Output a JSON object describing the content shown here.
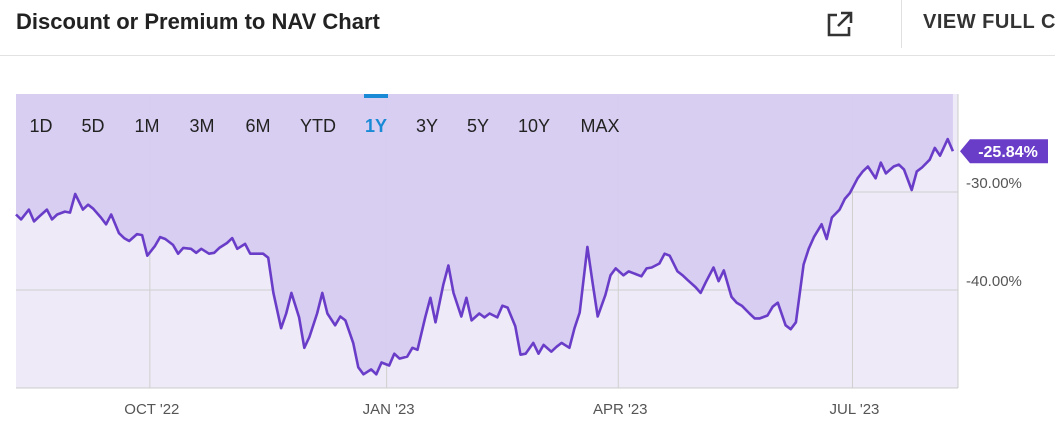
{
  "header": {
    "title": "Discount or Premium to NAV Chart",
    "view_full_label": "VIEW FULL C",
    "external_icon": "external-link-icon"
  },
  "colors": {
    "line": "#6a3dc9",
    "fill": "#d6ccf0",
    "active_range": "#1a8ad6",
    "badge": "#6a3dc9"
  },
  "chart_data": {
    "type": "area",
    "title": "",
    "xlabel": "",
    "ylabel": "",
    "ylim": [
      -50,
      -20
    ],
    "y_ticks": [
      -30,
      -40
    ],
    "y_tick_labels": [
      "-30.00%",
      "-40.00%"
    ],
    "x_ticks": [
      "2022-10-01",
      "2023-01-01",
      "2023-04-01",
      "2023-07-01"
    ],
    "x_tick_labels": [
      "OCT '22",
      "JAN '23",
      "APR '23",
      "JUL '23"
    ],
    "grid": true,
    "last_value_label": "-25.84%",
    "range_buttons": [
      "1D",
      "5D",
      "1M",
      "3M",
      "6M",
      "YTD",
      "1Y",
      "3Y",
      "5Y",
      "10Y",
      "MAX"
    ],
    "active_range": "1Y",
    "series": [
      {
        "points": [
          [
            "2022-08-10",
            -32.3
          ],
          [
            "2022-08-12",
            -32.8
          ],
          [
            "2022-08-15",
            -31.8
          ],
          [
            "2022-08-17",
            -33.0
          ],
          [
            "2022-08-19",
            -32.5
          ],
          [
            "2022-08-22",
            -31.8
          ],
          [
            "2022-08-24",
            -32.8
          ],
          [
            "2022-08-26",
            -32.3
          ],
          [
            "2022-08-29",
            -32.0
          ],
          [
            "2022-08-31",
            -32.1
          ],
          [
            "2022-09-02",
            -30.2
          ],
          [
            "2022-09-05",
            -31.8
          ],
          [
            "2022-09-07",
            -31.3
          ],
          [
            "2022-09-09",
            -31.7
          ],
          [
            "2022-09-12",
            -32.6
          ],
          [
            "2022-09-14",
            -33.3
          ],
          [
            "2022-09-16",
            -32.3
          ],
          [
            "2022-09-19",
            -34.2
          ],
          [
            "2022-09-21",
            -34.7
          ],
          [
            "2022-09-23",
            -35.0
          ],
          [
            "2022-09-26",
            -34.3
          ],
          [
            "2022-09-28",
            -34.4
          ],
          [
            "2022-09-30",
            -36.5
          ],
          [
            "2022-10-03",
            -35.5
          ],
          [
            "2022-10-05",
            -34.6
          ],
          [
            "2022-10-07",
            -34.8
          ],
          [
            "2022-10-10",
            -35.4
          ],
          [
            "2022-10-12",
            -36.3
          ],
          [
            "2022-10-14",
            -35.7
          ],
          [
            "2022-10-17",
            -35.8
          ],
          [
            "2022-10-19",
            -36.2
          ],
          [
            "2022-10-21",
            -35.8
          ],
          [
            "2022-10-24",
            -36.3
          ],
          [
            "2022-10-26",
            -36.2
          ],
          [
            "2022-10-28",
            -35.7
          ],
          [
            "2022-10-31",
            -35.2
          ],
          [
            "2022-11-02",
            -34.7
          ],
          [
            "2022-11-04",
            -35.8
          ],
          [
            "2022-11-07",
            -35.3
          ],
          [
            "2022-11-09",
            -36.3
          ],
          [
            "2022-11-11",
            -36.3
          ],
          [
            "2022-11-14",
            -36.3
          ],
          [
            "2022-11-16",
            -36.7
          ],
          [
            "2022-11-18",
            -40.3
          ],
          [
            "2022-11-21",
            -43.9
          ],
          [
            "2022-11-23",
            -42.4
          ],
          [
            "2022-11-25",
            -40.3
          ],
          [
            "2022-11-28",
            -42.8
          ],
          [
            "2022-11-30",
            -45.9
          ],
          [
            "2022-12-02",
            -44.8
          ],
          [
            "2022-12-05",
            -42.4
          ],
          [
            "2022-12-07",
            -40.3
          ],
          [
            "2022-12-09",
            -42.4
          ],
          [
            "2022-12-12",
            -43.6
          ],
          [
            "2022-12-14",
            -42.7
          ],
          [
            "2022-12-16",
            -43.1
          ],
          [
            "2022-12-19",
            -45.4
          ],
          [
            "2022-12-21",
            -47.9
          ],
          [
            "2022-12-23",
            -48.6
          ],
          [
            "2022-12-26",
            -48.1
          ],
          [
            "2022-12-28",
            -48.6
          ],
          [
            "2022-12-30",
            -47.4
          ],
          [
            "2023-01-02",
            -47.7
          ],
          [
            "2023-01-04",
            -46.5
          ],
          [
            "2023-01-06",
            -47.0
          ],
          [
            "2023-01-09",
            -46.8
          ],
          [
            "2023-01-11",
            -45.9
          ],
          [
            "2023-01-13",
            -46.1
          ],
          [
            "2023-01-16",
            -42.8
          ],
          [
            "2023-01-18",
            -40.8
          ],
          [
            "2023-01-20",
            -43.3
          ],
          [
            "2023-01-23",
            -39.5
          ],
          [
            "2023-01-25",
            -37.5
          ],
          [
            "2023-01-27",
            -40.3
          ],
          [
            "2023-01-30",
            -42.7
          ],
          [
            "2023-02-01",
            -40.8
          ],
          [
            "2023-02-03",
            -43.1
          ],
          [
            "2023-02-06",
            -42.4
          ],
          [
            "2023-02-08",
            -42.8
          ],
          [
            "2023-02-10",
            -42.4
          ],
          [
            "2023-02-13",
            -42.8
          ],
          [
            "2023-02-15",
            -41.6
          ],
          [
            "2023-02-17",
            -41.8
          ],
          [
            "2023-02-20",
            -43.7
          ],
          [
            "2023-02-22",
            -46.6
          ],
          [
            "2023-02-24",
            -46.5
          ],
          [
            "2023-02-27",
            -45.4
          ],
          [
            "2023-03-01",
            -46.5
          ],
          [
            "2023-03-03",
            -45.6
          ],
          [
            "2023-03-06",
            -46.3
          ],
          [
            "2023-03-08",
            -45.8
          ],
          [
            "2023-03-10",
            -45.4
          ],
          [
            "2023-03-13",
            -45.9
          ],
          [
            "2023-03-15",
            -43.9
          ],
          [
            "2023-03-17",
            -42.3
          ],
          [
            "2023-03-20",
            -35.6
          ],
          [
            "2023-03-22",
            -39.2
          ],
          [
            "2023-03-24",
            -42.7
          ],
          [
            "2023-03-27",
            -40.5
          ],
          [
            "2023-03-29",
            -38.5
          ],
          [
            "2023-03-31",
            -37.8
          ],
          [
            "2023-04-03",
            -38.5
          ],
          [
            "2023-04-05",
            -38.1
          ],
          [
            "2023-04-07",
            -38.3
          ],
          [
            "2023-04-10",
            -38.6
          ],
          [
            "2023-04-12",
            -37.8
          ],
          [
            "2023-04-14",
            -37.7
          ],
          [
            "2023-04-17",
            -37.3
          ],
          [
            "2023-04-19",
            -36.3
          ],
          [
            "2023-04-21",
            -36.5
          ],
          [
            "2023-04-24",
            -38.1
          ],
          [
            "2023-04-26",
            -38.5
          ],
          [
            "2023-04-28",
            -39.0
          ],
          [
            "2023-05-01",
            -39.7
          ],
          [
            "2023-05-03",
            -40.3
          ],
          [
            "2023-05-05",
            -39.2
          ],
          [
            "2023-05-08",
            -37.7
          ],
          [
            "2023-05-10",
            -39.1
          ],
          [
            "2023-05-12",
            -38.0
          ],
          [
            "2023-05-15",
            -40.7
          ],
          [
            "2023-05-17",
            -41.3
          ],
          [
            "2023-05-19",
            -41.6
          ],
          [
            "2023-05-22",
            -42.4
          ],
          [
            "2023-05-24",
            -42.9
          ],
          [
            "2023-05-26",
            -42.9
          ],
          [
            "2023-05-29",
            -42.6
          ],
          [
            "2023-05-31",
            -41.7
          ],
          [
            "2023-06-02",
            -41.3
          ],
          [
            "2023-06-05",
            -43.6
          ],
          [
            "2023-06-07",
            -44.0
          ],
          [
            "2023-06-09",
            -43.3
          ],
          [
            "2023-06-12",
            -37.4
          ],
          [
            "2023-06-14",
            -35.8
          ],
          [
            "2023-06-16",
            -34.6
          ],
          [
            "2023-06-19",
            -33.3
          ],
          [
            "2023-06-21",
            -34.8
          ],
          [
            "2023-06-23",
            -32.6
          ],
          [
            "2023-06-26",
            -31.8
          ],
          [
            "2023-06-28",
            -30.7
          ],
          [
            "2023-06-30",
            -30.1
          ],
          [
            "2023-07-03",
            -28.6
          ],
          [
            "2023-07-05",
            -27.9
          ],
          [
            "2023-07-07",
            -27.4
          ],
          [
            "2023-07-10",
            -28.6
          ],
          [
            "2023-07-12",
            -27.0
          ],
          [
            "2023-07-14",
            -28.1
          ],
          [
            "2023-07-17",
            -27.4
          ],
          [
            "2023-07-19",
            -27.2
          ],
          [
            "2023-07-21",
            -27.7
          ],
          [
            "2023-07-24",
            -29.8
          ],
          [
            "2023-07-26",
            -27.9
          ],
          [
            "2023-07-28",
            -27.5
          ],
          [
            "2023-07-31",
            -26.7
          ],
          [
            "2023-08-02",
            -25.5
          ],
          [
            "2023-08-04",
            -26.3
          ],
          [
            "2023-08-07",
            -24.6
          ],
          [
            "2023-08-09",
            -25.84
          ]
        ]
      }
    ]
  }
}
